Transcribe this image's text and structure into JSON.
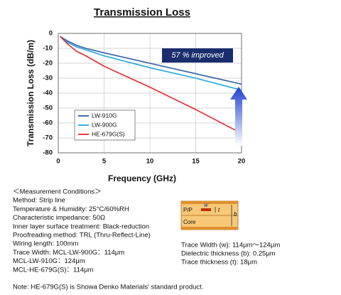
{
  "chart_data": {
    "type": "line",
    "title": "Transmission Loss",
    "x_label": "Frequency (GHz)",
    "y_label": "Transmission Loss (dB/m)",
    "x": [
      0.2,
      1,
      2,
      3,
      5,
      10,
      15,
      20
    ],
    "series": [
      {
        "name": "LW-910G",
        "color": "#2f5fa8",
        "values": [
          -2,
          -5,
          -8,
          -10,
          -13,
          -20,
          -27,
          -34
        ]
      },
      {
        "name": "LW-900G",
        "color": "#22a6e0",
        "values": [
          -2,
          -6,
          -9,
          -11,
          -15,
          -23,
          -30,
          -38
        ]
      },
      {
        "name": "HE-679G(S)",
        "color": "#e8282a",
        "values": [
          -2,
          -7,
          -12,
          -15,
          -22,
          -36,
          -51,
          -67
        ]
      }
    ],
    "xlim": [
      0,
      20
    ],
    "xticks": [
      0,
      5,
      10,
      15,
      20
    ],
    "ylim": [
      -80,
      0
    ],
    "yticks": [
      0,
      -10,
      -20,
      -30,
      -40,
      -50,
      -60,
      -70,
      -80
    ],
    "grid": true,
    "legend": "lower left",
    "annotation": "57 % improved"
  },
  "conditions": [
    "＜Measurement Conditions＞",
    "Method: Strip line",
    "Temperature & Humidity: 25°C/60%RH",
    "Characteristic impedance: 50Ω",
    "Inner layer surface treatment: Black-reduction",
    "Proofreading method: TRL (Thru-Reflect-Line)",
    "Wiring length: 100mm",
    "Trace Width: MCL-LW-900G：114μm",
    "MCL-LW-910G：124μm",
    "MCL-HE-679G(S)：114μm"
  ],
  "diagram": {
    "layers": [
      "P/P",
      "Core"
    ],
    "symbols": [
      "w",
      "t",
      "b"
    ]
  },
  "specs": [
    "Trace Width (w): 114μm～124μm",
    "Dielectric thickness (b): 0.25μm",
    "Trace thickness (t): 18μm"
  ],
  "note": "Note: HE-679G(S) is Showa Denko Materials' standard product."
}
